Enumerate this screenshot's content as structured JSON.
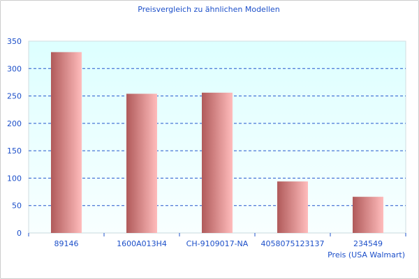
{
  "chart_data": {
    "type": "bar",
    "title": "Preisvergleich zu ähnlichen Modellen",
    "xlabel": "Preis (USA Walmart)",
    "ylabel": "",
    "categories": [
      "89146",
      "1600A013H4",
      "CH-9109017-NA",
      "4058075123137",
      "234549"
    ],
    "values": [
      330,
      254,
      256,
      94,
      66
    ],
    "ylim": [
      0,
      350
    ],
    "yticks": [
      0,
      50,
      100,
      150,
      200,
      250,
      300,
      350
    ],
    "grid": true,
    "colors": {
      "bar_dark": "#b05a5a",
      "bar_light": "#ffbcbc",
      "grid": "#2255cc",
      "text": "#1c4fc9",
      "plot_top": "#ddffff",
      "plot_bottom": "#f8ffff"
    }
  }
}
